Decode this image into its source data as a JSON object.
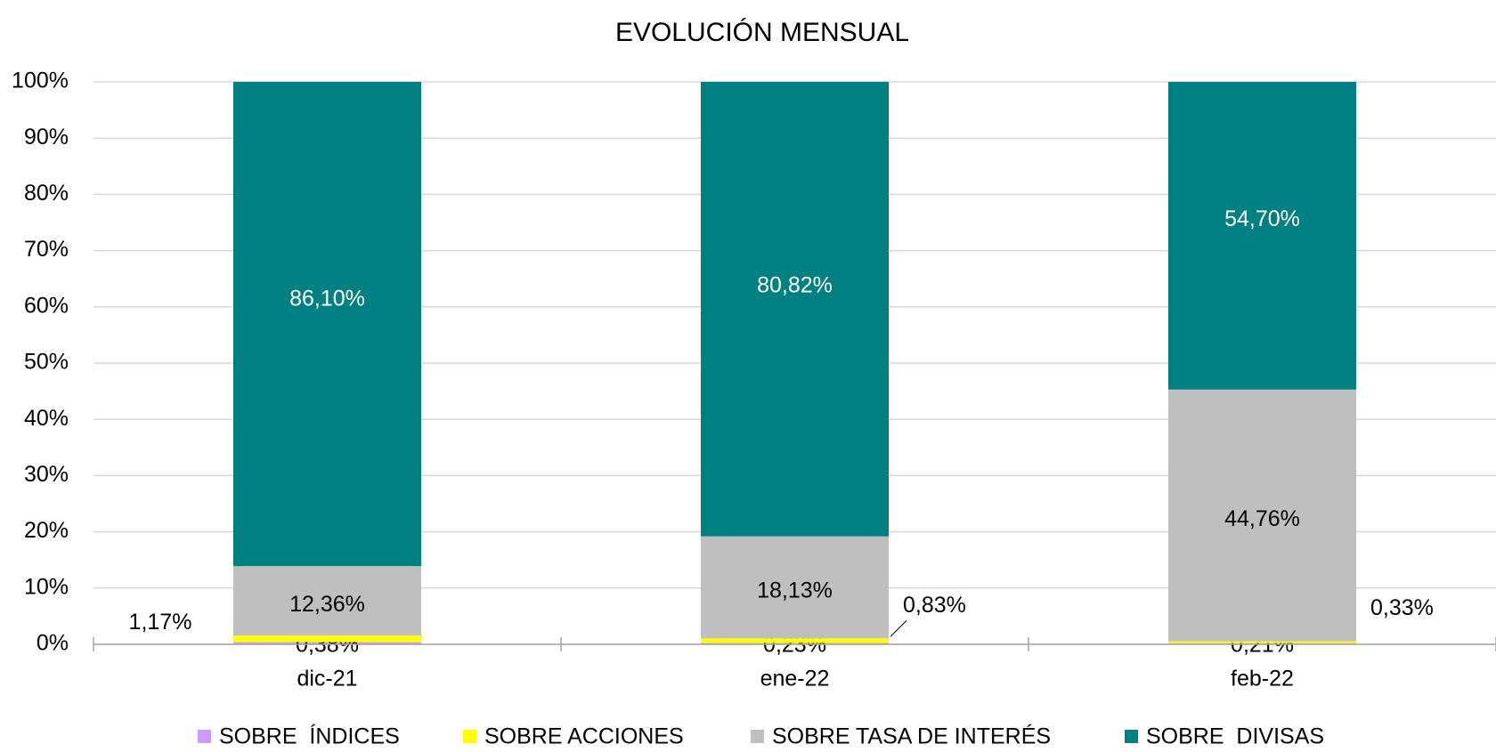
{
  "chart_data": {
    "type": "stacked_bar",
    "title": "EVOLUCIÓN MENSUAL",
    "categories": [
      "dic-21",
      "ene-22",
      "feb-22"
    ],
    "series": [
      {
        "name": "SOBRE  ÍNDICES",
        "color": "#cc99ff",
        "values": [
          0.38,
          0.23,
          0.21
        ],
        "value_labels": [
          "0,38%",
          "0,23%",
          "0,21%"
        ]
      },
      {
        "name": "SOBRE ACCIONES",
        "color": "#ffff00",
        "values": [
          1.17,
          0.83,
          0.33
        ],
        "value_labels": [
          "1,17%",
          "0,83%",
          "0,33%"
        ]
      },
      {
        "name": "SOBRE TASA DE INTERÉS",
        "color": "#bfbfbf",
        "values": [
          12.36,
          18.13,
          44.76
        ],
        "value_labels": [
          "12,36%",
          "18,13%",
          "44,76%"
        ]
      },
      {
        "name": "SOBRE  DIVISAS",
        "color": "#008080",
        "values": [
          86.1,
          80.82,
          54.7
        ],
        "value_labels": [
          "86,10%",
          "80,82%",
          "54,70%"
        ]
      }
    ],
    "ylim": [
      0,
      100
    ],
    "yticks": [
      {
        "value": 0,
        "label": "0%"
      },
      {
        "value": 10,
        "label": "10%"
      },
      {
        "value": 20,
        "label": "20%"
      },
      {
        "value": 30,
        "label": "30%"
      },
      {
        "value": 40,
        "label": "40%"
      },
      {
        "value": 50,
        "label": "50%"
      },
      {
        "value": 60,
        "label": "60%"
      },
      {
        "value": 70,
        "label": "70%"
      },
      {
        "value": 80,
        "label": "80%"
      },
      {
        "value": 90,
        "label": "90%"
      },
      {
        "value": 100,
        "label": "100%"
      }
    ],
    "grid": true,
    "legend": "bottom"
  }
}
